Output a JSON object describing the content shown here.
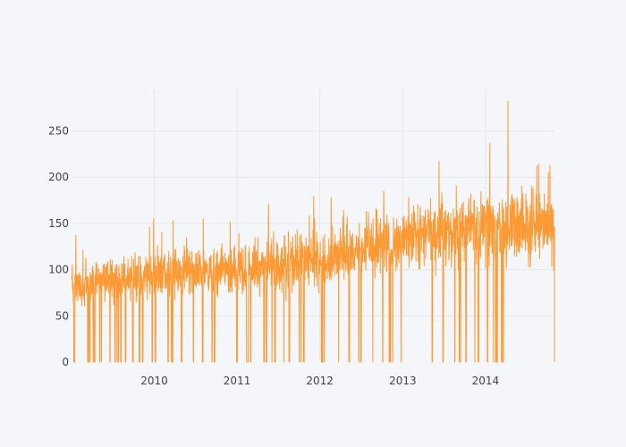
{
  "chart_data": {
    "type": "line",
    "title": "",
    "xlabel": "",
    "ylabel": "",
    "x_range": [
      "2009-01-01",
      "2014-11-01"
    ],
    "ylim": [
      0,
      295
    ],
    "x_ticks": [
      "2010",
      "2011",
      "2012",
      "2013",
      "2014"
    ],
    "y_ticks": [
      "0",
      "50",
      "100",
      "150",
      "200",
      "250"
    ],
    "grid": true,
    "legend": "none",
    "series": [
      {
        "color": "#ff9933",
        "sampling": "daily",
        "levels": [
          {
            "year": 2009,
            "mean": 85,
            "spread": 18
          },
          {
            "year": 2010,
            "mean": 95,
            "spread": 20
          },
          {
            "year": 2011,
            "mean": 100,
            "spread": 22
          },
          {
            "year": 2012,
            "mean": 112,
            "spread": 24
          },
          {
            "year": 2013,
            "mean": 135,
            "spread": 26
          },
          {
            "year": 2014,
            "mean": 145,
            "spread": 30
          }
        ],
        "peaks": [
          {
            "date": "2009-01-20",
            "value": 137
          },
          {
            "date": "2010-03-25",
            "value": 153
          },
          {
            "date": "2010-08-05",
            "value": 155
          },
          {
            "date": "2011-05-20",
            "value": 171
          },
          {
            "date": "2011-12-05",
            "value": 179
          },
          {
            "date": "2012-02-20",
            "value": 178
          },
          {
            "date": "2012-09-05",
            "value": 166
          },
          {
            "date": "2013-06-10",
            "value": 217
          },
          {
            "date": "2014-01-20",
            "value": 237
          },
          {
            "date": "2014-04-10",
            "value": 282
          },
          {
            "date": "2014-08-15",
            "value": 212
          },
          {
            "date": "2014-10-05",
            "value": 205
          }
        ]
      }
    ]
  }
}
